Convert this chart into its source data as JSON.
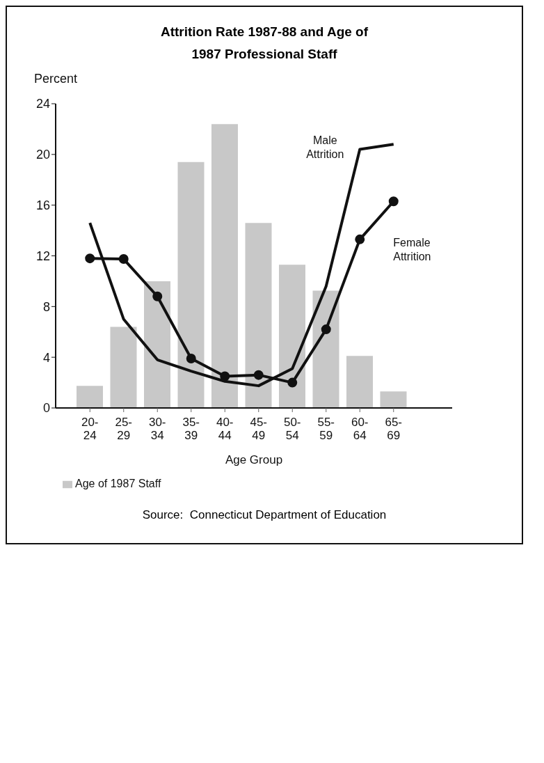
{
  "chart_data": {
    "type": "bar",
    "title": "Attrition Rate 1987-88 and Age of\n1987 Professional Staff",
    "ylabel": "Percent",
    "xlabel": "Age Group",
    "categories": [
      "20-24",
      "25-29",
      "30-34",
      "35-39",
      "40-44",
      "45-49",
      "50-54",
      "55-59",
      "60-64",
      "65-69"
    ],
    "series": [
      {
        "name": "Age of 1987 Staff",
        "color": "#c8c8c8",
        "values": [
          1.75,
          6.4,
          10,
          19.4,
          22.4,
          14.6,
          11.3,
          9.25,
          4.1,
          1.3
        ]
      },
      {
        "name": "Male Attrition",
        "type": "line",
        "color": "#111111",
        "marker": "none",
        "values": [
          14.6,
          7,
          3.8,
          2.9,
          2.1,
          1.75,
          3.1,
          9.6,
          20.4,
          20.8
        ]
      },
      {
        "name": "Female Attrition",
        "type": "line",
        "color": "#111111",
        "marker": "circle",
        "values": [
          11.8,
          11.75,
          8.8,
          3.9,
          2.5,
          2.6,
          2,
          6.2,
          13.3,
          16.3
        ]
      }
    ],
    "ylim": [
      0,
      24
    ],
    "yticks": [
      0,
      4,
      8,
      12,
      16,
      20,
      24
    ],
    "grid": false,
    "legend": "bottom left",
    "annotations": [
      "Source:  Connecticut Department of Education"
    ]
  }
}
